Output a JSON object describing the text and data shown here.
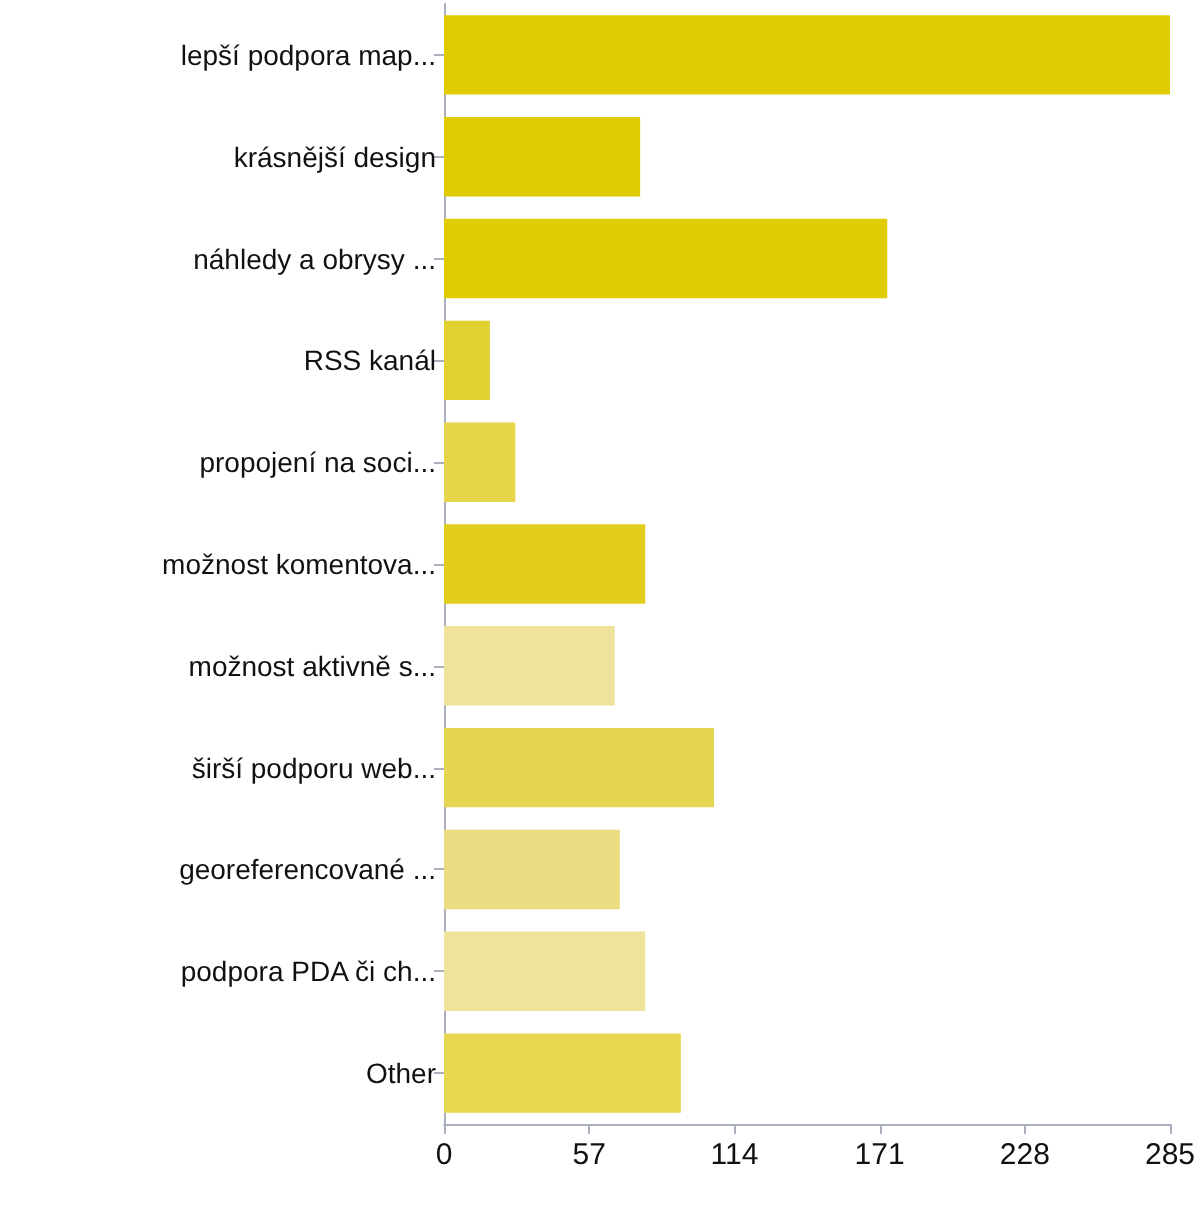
{
  "chart_data": {
    "type": "bar",
    "orientation": "horizontal",
    "categories": [
      "lepší podpora map...",
      "krásnější design",
      "náhledy a obrysy ...",
      "RSS kanál",
      "propojení na soci...",
      "možnost komentova...",
      "možnost aktivně s...",
      "širší podporu web...",
      "georeferencované ...",
      "podpora PDA či ch...",
      "Other"
    ],
    "values": [
      285,
      77,
      174,
      18,
      28,
      79,
      67,
      106,
      69,
      79,
      93
    ],
    "colors": [
      "#e0cc00",
      "#e0cc00",
      "#e0cc00",
      "#e2cf30",
      "#e6d548",
      "#e2cc1c",
      "#efe29a",
      "#e6d550",
      "#eadc80",
      "#efe39a",
      "#e8d850"
    ],
    "xlim": [
      0,
      285
    ],
    "xticks": [
      0,
      57,
      114,
      171,
      228,
      285
    ],
    "grid": false
  }
}
